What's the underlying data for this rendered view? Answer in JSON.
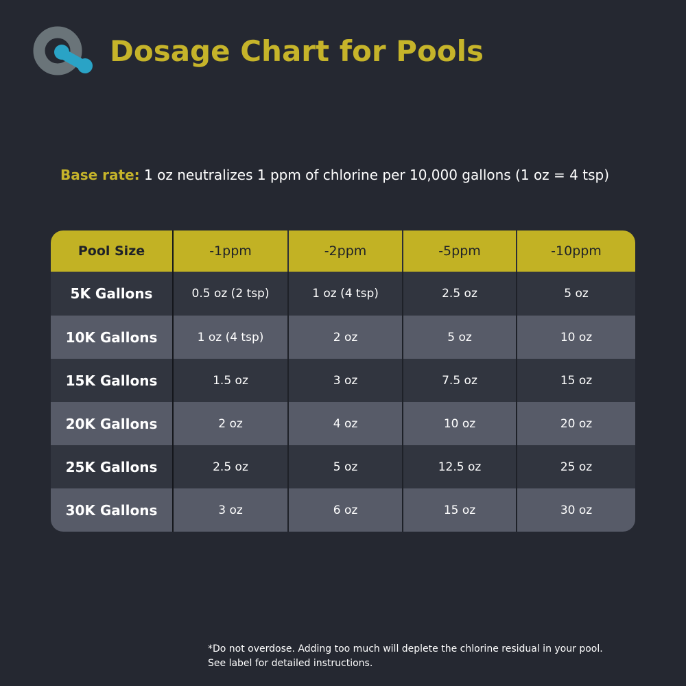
{
  "header": {
    "title": "Dosage Chart for Pools",
    "logo_icon": "brand-logo-icon"
  },
  "base_rate": {
    "label": "Base rate:",
    "text": " 1 oz neutralizes 1 ppm of chlorine per 10,000 gallons (1 oz = 4 tsp)"
  },
  "table": {
    "headers": [
      "Pool Size",
      "-1ppm",
      "-2ppm",
      "-5ppm",
      "-10ppm"
    ],
    "rows": [
      [
        "5K Gallons",
        "0.5 oz (2 tsp)",
        "1 oz (4 tsp)",
        "2.5 oz",
        "5 oz"
      ],
      [
        "10K Gallons",
        "1 oz (4 tsp)",
        "2 oz",
        "5 oz",
        "10 oz"
      ],
      [
        "15K Gallons",
        "1.5 oz",
        "3 oz",
        "7.5 oz",
        "15 oz"
      ],
      [
        "20K Gallons",
        "2 oz",
        "4 oz",
        "10 oz",
        "20 oz"
      ],
      [
        "25K Gallons",
        "2.5 oz",
        "5 oz",
        "12.5 oz",
        "25 oz"
      ],
      [
        "30K Gallons",
        "3 oz",
        "6 oz",
        "15 oz",
        "30 oz"
      ]
    ]
  },
  "note": {
    "line1": "*Do not overdose. Adding too much will deplete the chlorine residual in your pool.",
    "line2": "See label for detailed instructions."
  },
  "colors": {
    "background": "#252831",
    "accent": "#c6b42a",
    "row_dark": "#31353f",
    "row_light": "#575b68",
    "logo_gray": "#6a7479",
    "logo_teal": "#2aa3c6"
  }
}
